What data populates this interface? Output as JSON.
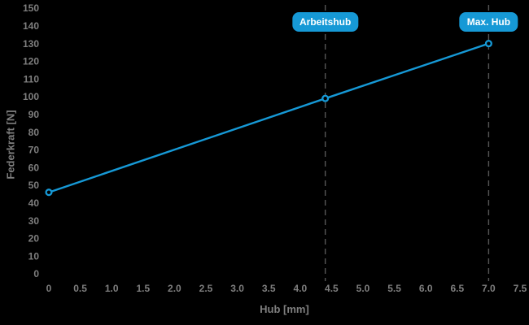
{
  "chart": {
    "colors": {
      "background": "#000000",
      "accent_blue": "#1699d6",
      "tick_text": "#7f7f7f",
      "dashed_line": "#565656",
      "marker_fill": "#000000",
      "badge_text": "#ffffff"
    }
  },
  "chart_data": {
    "type": "line",
    "title": "",
    "xlabel": "Hub [mm]",
    "ylabel": "Federkraft [N]",
    "xlim": [
      0,
      7.5
    ],
    "ylim": [
      0,
      150
    ],
    "grid": false,
    "legend": "none",
    "x_tick_labels": [
      "0",
      "0.5",
      "1.0",
      "1.5",
      "2.0",
      "2.5",
      "3.0",
      "3.5",
      "4.0",
      "4.5",
      "5.0",
      "5.5",
      "6.0",
      "6.5",
      "7.0",
      "7.5"
    ],
    "y_tick_labels": [
      "0",
      "10",
      "20",
      "30",
      "40",
      "50",
      "60",
      "70",
      "80",
      "90",
      "100",
      "110",
      "120",
      "130",
      "140",
      "150"
    ],
    "series": [
      {
        "name": "Federkraft",
        "points": [
          [
            0,
            46
          ],
          [
            4.4,
            99
          ],
          [
            7.0,
            130
          ]
        ],
        "marker": "ring"
      }
    ],
    "annotations": [
      {
        "id": "arbeitshub",
        "label": "Arbeitshub",
        "x": 4.4
      },
      {
        "id": "max-hub",
        "label": "Max. Hub",
        "x": 7.0
      }
    ]
  }
}
